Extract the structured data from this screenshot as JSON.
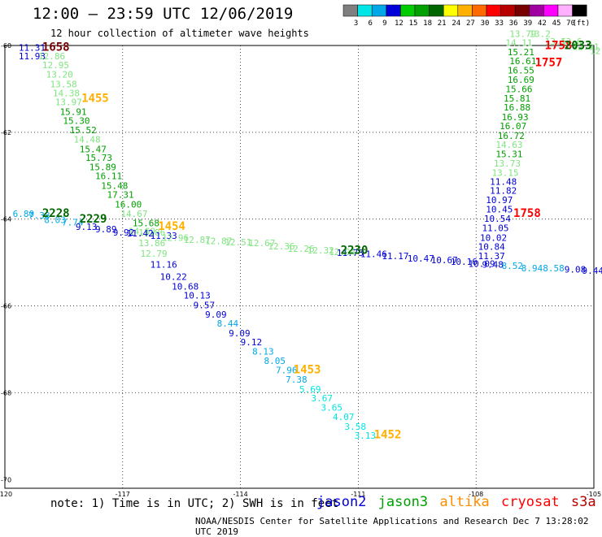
{
  "header": {
    "title": "12:00 — 23:59 UTC 12/06/2019",
    "subtitle": "12 hour collection of altimeter wave heights"
  },
  "colorbar": {
    "colors": [
      "#7f7f7f",
      "#00e5e5",
      "#00a8e8",
      "#0000d8",
      "#00cc00",
      "#00a000",
      "#006600",
      "#ffff00",
      "#ffb000",
      "#ff6a00",
      "#ff0000",
      "#b80000",
      "#770000",
      "#a000a0",
      "#ff00ff",
      "#ffb0ff",
      "#000000"
    ],
    "labels": [
      "3",
      "6",
      "9",
      "12",
      "15",
      "18",
      "21",
      "24",
      "27",
      "30",
      "33",
      "36",
      "39",
      "42",
      "45",
      "70",
      "(ft)"
    ]
  },
  "axes": {
    "lon_ticks": [
      "-120",
      "-117",
      "-114",
      "-111",
      "-108",
      "-105"
    ],
    "lat_ticks": [
      "-60",
      "-62",
      "-64",
      "-66",
      "-68",
      "-70"
    ]
  },
  "chart_data": {
    "type": "scatter",
    "title": "12 hour collection of altimeter wave heights",
    "xlabel": "",
    "ylabel": "",
    "xlim": [
      -120,
      -105
    ],
    "ylim": [
      -70.2,
      -60
    ],
    "grid": true,
    "wave_heights": [
      {
        "lon": -119.65,
        "lat": -60.12,
        "text": "11.31",
        "color": "#0000d8"
      },
      {
        "lon": -119.65,
        "lat": -60.32,
        "text": "11.93",
        "color": "#0000d8"
      },
      {
        "lon": -119.15,
        "lat": -60.32,
        "text": "12.86",
        "color": "#7fe57f"
      },
      {
        "lon": -119.05,
        "lat": -60.52,
        "text": "12.95",
        "color": "#7fe57f"
      },
      {
        "lon": -118.95,
        "lat": -60.74,
        "text": "13.20",
        "color": "#7fe57f"
      },
      {
        "lon": -118.85,
        "lat": -60.96,
        "text": "13.58",
        "color": "#7fe57f"
      },
      {
        "lon": -118.78,
        "lat": -61.17,
        "text": "14.38",
        "color": "#7fe57f"
      },
      {
        "lon": -118.72,
        "lat": -61.38,
        "text": "13.97",
        "color": "#7fe57f"
      },
      {
        "lon": -118.6,
        "lat": -61.6,
        "text": "15.91",
        "color": "#00a000"
      },
      {
        "lon": -118.52,
        "lat": -61.81,
        "text": "15.30",
        "color": "#00a000"
      },
      {
        "lon": -118.35,
        "lat": -62.02,
        "text": "15.52",
        "color": "#00a000"
      },
      {
        "lon": -118.25,
        "lat": -62.24,
        "text": "14.48",
        "color": "#7fe57f"
      },
      {
        "lon": -118.1,
        "lat": -62.46,
        "text": "15.47",
        "color": "#00a000"
      },
      {
        "lon": -117.95,
        "lat": -62.66,
        "text": "15.73",
        "color": "#00a000"
      },
      {
        "lon": -117.85,
        "lat": -62.87,
        "text": "15.89",
        "color": "#00a000"
      },
      {
        "lon": -117.7,
        "lat": -63.08,
        "text": "16.11",
        "color": "#00a000"
      },
      {
        "lon": -117.55,
        "lat": -63.3,
        "text": "15.48",
        "color": "#00a000"
      },
      {
        "lon": -117.4,
        "lat": -63.51,
        "text": "17.31",
        "color": "#00a000"
      },
      {
        "lon": -117.2,
        "lat": -63.73,
        "text": "16.00",
        "color": "#00a000"
      },
      {
        "lon": -117.05,
        "lat": -63.95,
        "text": "14.67",
        "color": "#7fe57f"
      },
      {
        "lon": -116.75,
        "lat": -64.16,
        "text": "15.68",
        "color": "#00a000"
      },
      {
        "lon": -116.85,
        "lat": -64.35,
        "text": "14.69",
        "color": "#7fe57f"
      },
      {
        "lon": -116.6,
        "lat": -64.38,
        "text": "13.86",
        "color": "#7fe57f"
      },
      {
        "lon": -116.6,
        "lat": -64.62,
        "text": "13.86",
        "color": "#7fe57f"
      },
      {
        "lon": -116.55,
        "lat": -64.87,
        "text": "12.79",
        "color": "#7fe57f"
      },
      {
        "lon": -116.3,
        "lat": -64.45,
        "text": "11.33",
        "color": "#0000d8"
      },
      {
        "lon": -116.0,
        "lat": -64.5,
        "text": "12.96",
        "color": "#7fe57f"
      },
      {
        "lon": -115.45,
        "lat": -64.55,
        "text": "12.87",
        "color": "#7fe57f"
      },
      {
        "lon": -114.9,
        "lat": -64.58,
        "text": "12.87",
        "color": "#7fe57f"
      },
      {
        "lon": -114.4,
        "lat": -64.6,
        "text": "12.51",
        "color": "#7fe57f"
      },
      {
        "lon": -113.8,
        "lat": -64.62,
        "text": "12.67",
        "color": "#7fe57f"
      },
      {
        "lon": -113.3,
        "lat": -64.7,
        "text": "12.36",
        "color": "#7fe57f"
      },
      {
        "lon": -112.8,
        "lat": -64.75,
        "text": "12.26",
        "color": "#7fe57f"
      },
      {
        "lon": -112.3,
        "lat": -64.79,
        "text": "12.32",
        "color": "#7fe57f"
      },
      {
        "lon": -111.75,
        "lat": -64.83,
        "text": "12.94",
        "color": "#7fe57f"
      },
      {
        "lon": -116.3,
        "lat": -65.12,
        "text": "11.16",
        "color": "#0000d8"
      },
      {
        "lon": -116.05,
        "lat": -65.4,
        "text": "10.22",
        "color": "#0000d8"
      },
      {
        "lon": -115.75,
        "lat": -65.62,
        "text": "10.68",
        "color": "#0000d8"
      },
      {
        "lon": -115.45,
        "lat": -65.83,
        "text": "10.13",
        "color": "#0000d8"
      },
      {
        "lon": -115.2,
        "lat": -66.05,
        "text": "9.57",
        "color": "#0000d8"
      },
      {
        "lon": -114.9,
        "lat": -66.27,
        "text": "9.09",
        "color": "#0000d8"
      },
      {
        "lon": -114.6,
        "lat": -66.48,
        "text": "8.44",
        "color": "#00a8e8"
      },
      {
        "lon": -114.3,
        "lat": -66.7,
        "text": "9.09",
        "color": "#0000d8"
      },
      {
        "lon": -114.0,
        "lat": -66.91,
        "text": "9.12",
        "color": "#0000d8"
      },
      {
        "lon": -113.7,
        "lat": -67.12,
        "text": "8.13",
        "color": "#00a8e8"
      },
      {
        "lon": -113.4,
        "lat": -67.34,
        "text": "8.05",
        "color": "#00a8e8"
      },
      {
        "lon": -113.1,
        "lat": -67.55,
        "text": "7.96",
        "color": "#00a8e8"
      },
      {
        "lon": -112.85,
        "lat": -67.77,
        "text": "7.38",
        "color": "#00a8e8"
      },
      {
        "lon": -112.5,
        "lat": -67.99,
        "text": "5.69",
        "color": "#00e5e5"
      },
      {
        "lon": -112.2,
        "lat": -68.2,
        "text": "3.67",
        "color": "#00e5e5"
      },
      {
        "lon": -111.95,
        "lat": -68.41,
        "text": "3.65",
        "color": "#00e5e5"
      },
      {
        "lon": -111.65,
        "lat": -68.63,
        "text": "4.07",
        "color": "#00e5e5"
      },
      {
        "lon": -111.35,
        "lat": -68.85,
        "text": "3.58",
        "color": "#00e5e5"
      },
      {
        "lon": -111.1,
        "lat": -69.06,
        "text": "3.13",
        "color": "#00e5e5"
      },
      {
        "lon": -119.8,
        "lat": -63.95,
        "text": "6.80",
        "color": "#00a8e8"
      },
      {
        "lon": -119.4,
        "lat": -63.99,
        "text": "7.38",
        "color": "#00a8e8"
      },
      {
        "lon": -119.0,
        "lat": -64.09,
        "text": "8.03",
        "color": "#00a8e8"
      },
      {
        "lon": -118.55,
        "lat": -64.15,
        "text": "7.74",
        "color": "#00a8e8"
      },
      {
        "lon": -118.2,
        "lat": -64.25,
        "text": "9.13",
        "color": "#0000d8"
      },
      {
        "lon": -117.7,
        "lat": -64.3,
        "text": "9.89",
        "color": "#0000d8"
      },
      {
        "lon": -117.25,
        "lat": -64.38,
        "text": "9.92",
        "color": "#0000d8"
      },
      {
        "lon": -116.9,
        "lat": -64.4,
        "text": "11.42",
        "color": "#0000d8"
      },
      {
        "lon": -111.55,
        "lat": -64.85,
        "text": "11.73",
        "color": "#0000d8"
      },
      {
        "lon": -110.95,
        "lat": -64.88,
        "text": "11.46",
        "color": "#0000d8"
      },
      {
        "lon": -110.4,
        "lat": -64.92,
        "text": "11.17",
        "color": "#0000d8"
      },
      {
        "lon": -109.75,
        "lat": -64.98,
        "text": "10.47",
        "color": "#0000d8"
      },
      {
        "lon": -109.15,
        "lat": -65.02,
        "text": "10.67",
        "color": "#0000d8"
      },
      {
        "lon": -108.65,
        "lat": -65.05,
        "text": "10.16",
        "color": "#0000d8"
      },
      {
        "lon": -108.2,
        "lat": -65.1,
        "text": "10.09",
        "color": "#0000d8"
      },
      {
        "lon": -107.85,
        "lat": -65.12,
        "text": "9.48",
        "color": "#0000d8"
      },
      {
        "lon": -107.35,
        "lat": -65.15,
        "text": "8.52",
        "color": "#00a8e8"
      },
      {
        "lon": -106.85,
        "lat": -65.2,
        "text": "8.94",
        "color": "#00a8e8"
      },
      {
        "lon": -106.3,
        "lat": -65.2,
        "text": "8.58",
        "color": "#00a8e8"
      },
      {
        "lon": -105.75,
        "lat": -65.23,
        "text": "9.08",
        "color": "#0000d8"
      },
      {
        "lon": -105.3,
        "lat": -65.26,
        "text": "9.44",
        "color": "#0000d8"
      },
      {
        "lon": -107.95,
        "lat": -64.92,
        "text": "11.37",
        "color": "#0000d8"
      },
      {
        "lon": -107.95,
        "lat": -64.71,
        "text": "10.84",
        "color": "#0000d8"
      },
      {
        "lon": -107.9,
        "lat": -64.5,
        "text": "10.02",
        "color": "#0000d8"
      },
      {
        "lon": -107.85,
        "lat": -64.28,
        "text": "11.05",
        "color": "#0000d8"
      },
      {
        "lon": -107.8,
        "lat": -64.06,
        "text": "10.54",
        "color": "#0000d8"
      },
      {
        "lon": -107.75,
        "lat": -63.85,
        "text": "10.45",
        "color": "#0000d8"
      },
      {
        "lon": -107.75,
        "lat": -63.63,
        "text": "10.97",
        "color": "#0000d8"
      },
      {
        "lon": -107.65,
        "lat": -63.42,
        "text": "11.82",
        "color": "#0000d8"
      },
      {
        "lon": -107.65,
        "lat": -63.21,
        "text": "11.48",
        "color": "#0000d8"
      },
      {
        "lon": -107.6,
        "lat": -63.0,
        "text": "13.15",
        "color": "#7fe57f"
      },
      {
        "lon": -107.55,
        "lat": -62.79,
        "text": "13.73",
        "color": "#7fe57f"
      },
      {
        "lon": -107.5,
        "lat": -62.57,
        "text": "15.31",
        "color": "#00a000"
      },
      {
        "lon": -107.5,
        "lat": -62.36,
        "text": "14.63",
        "color": "#7fe57f"
      },
      {
        "lon": -107.45,
        "lat": -62.15,
        "text": "16.72",
        "color": "#00a000"
      },
      {
        "lon": -107.4,
        "lat": -61.93,
        "text": "16.07",
        "color": "#00a000"
      },
      {
        "lon": -107.35,
        "lat": -61.72,
        "text": "16.93",
        "color": "#00a000"
      },
      {
        "lon": -107.3,
        "lat": -61.5,
        "text": "16.88",
        "color": "#00a000"
      },
      {
        "lon": -107.3,
        "lat": -61.29,
        "text": "15.81",
        "color": "#00a000"
      },
      {
        "lon": -107.25,
        "lat": -61.08,
        "text": "15.66",
        "color": "#00a000"
      },
      {
        "lon": -107.2,
        "lat": -60.86,
        "text": "16.69",
        "color": "#00a000"
      },
      {
        "lon": -107.2,
        "lat": -60.65,
        "text": "16.55",
        "color": "#00a000"
      },
      {
        "lon": -107.15,
        "lat": -60.43,
        "text": "16.61",
        "color": "#00a000"
      },
      {
        "lon": -107.2,
        "lat": -60.22,
        "text": "15.21",
        "color": "#00a000"
      },
      {
        "lon": -107.25,
        "lat": -60.01,
        "text": "14.11",
        "color": "#7fe57f"
      },
      {
        "lon": -107.15,
        "lat": -59.8,
        "text": "13.79",
        "color": "#7fe57f"
      },
      {
        "lon": -106.65,
        "lat": -59.8,
        "text": "13.2",
        "color": "#7fe57f"
      },
      {
        "lon": -106.25,
        "lat": -59.98,
        "text": "13.5",
        "color": "#7fe57f"
      },
      {
        "lon": -105.85,
        "lat": -59.98,
        "text": "12.6",
        "color": "#7fe57f"
      },
      {
        "lon": -105.55,
        "lat": -60.1,
        "text": "12.91",
        "color": "#7fe57f"
      },
      {
        "lon": -105.1,
        "lat": -60.2,
        "text": "12",
        "color": "#7fe57f"
      }
    ],
    "pass_times": [
      {
        "lon": -119.05,
        "lat": -60.12,
        "text": "1658",
        "color": "#770000"
      },
      {
        "lon": -118.05,
        "lat": -61.3,
        "text": "1455",
        "color": "#ffb000"
      },
      {
        "lon": -119.05,
        "lat": -63.95,
        "text": "2228",
        "color": "#006600"
      },
      {
        "lon": -118.1,
        "lat": -64.08,
        "text": "2229",
        "color": "#006600"
      },
      {
        "lon": -116.1,
        "lat": -64.25,
        "text": "1454",
        "color": "#ffb000"
      },
      {
        "lon": -111.45,
        "lat": -64.8,
        "text": "2230",
        "color": "#006600"
      },
      {
        "lon": -112.65,
        "lat": -67.55,
        "text": "1453",
        "color": "#ffb000"
      },
      {
        "lon": -110.6,
        "lat": -69.05,
        "text": "1452",
        "color": "#ffb000"
      },
      {
        "lon": -107.05,
        "lat": -63.95,
        "text": "1758",
        "color": "#ff0000"
      },
      {
        "lon": -106.5,
        "lat": -60.48,
        "text": "1757",
        "color": "#ff0000"
      },
      {
        "lon": -106.25,
        "lat": -60.08,
        "text": "1758",
        "color": "#ff0000"
      },
      {
        "lon": -105.75,
        "lat": -60.08,
        "text": "2033",
        "color": "#006600"
      }
    ]
  },
  "footer": {
    "note": "note: 1) Time is in UTC; 2) SWH is in feet",
    "satellites": [
      {
        "name": "jason2",
        "color": "#0000d8"
      },
      {
        "name": "jason3",
        "color": "#00a000"
      },
      {
        "name": "altika",
        "color": "#ff8c00"
      },
      {
        "name": "cryosat",
        "color": "#ff0000"
      },
      {
        "name": "s3a",
        "color": "#b80000"
      }
    ],
    "credit": "NOAA/NESDIS Center for Satellite Applications and Research   Dec  7 13:28:02 UTC 2019"
  }
}
